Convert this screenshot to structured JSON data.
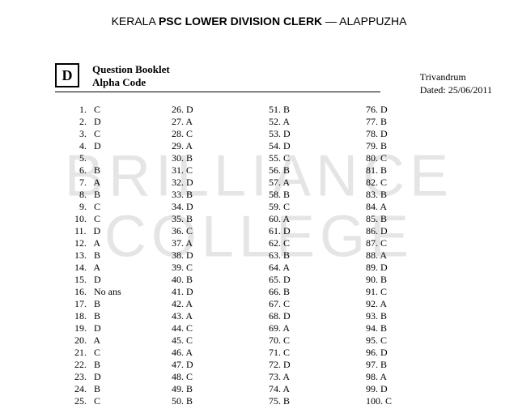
{
  "title_prefix": "KERALA ",
  "title_bold": "PSC LOWER DIVISION CLERK",
  "title_suffix": " — ALAPPUZHA",
  "code_letter": "D",
  "booklet_line1": "Question Booklet",
  "booklet_line2": "Alpha Code",
  "meta_place": "Trivandrum",
  "meta_date": "Dated: 25/06/2011",
  "watermark_line1": "BRILLIANCE",
  "watermark_line2": "COLLEGE",
  "columns": [
    [
      {
        "n": "1.",
        "a": "C"
      },
      {
        "n": "2.",
        "a": "D"
      },
      {
        "n": "3.",
        "a": "C"
      },
      {
        "n": "4.",
        "a": "D"
      },
      {
        "n": "5.",
        "a": ""
      },
      {
        "n": "6.",
        "a": "B"
      },
      {
        "n": "7.",
        "a": "A"
      },
      {
        "n": "8.",
        "a": "B"
      },
      {
        "n": "9.",
        "a": "C"
      },
      {
        "n": "10.",
        "a": "C"
      },
      {
        "n": "11.",
        "a": "D"
      },
      {
        "n": "12.",
        "a": "A"
      },
      {
        "n": "13.",
        "a": "B"
      },
      {
        "n": "14.",
        "a": "A"
      },
      {
        "n": "15.",
        "a": "D"
      },
      {
        "n": "16.",
        "a": "No ans"
      },
      {
        "n": "17.",
        "a": "B"
      },
      {
        "n": "18.",
        "a": "B"
      },
      {
        "n": "19.",
        "a": "D"
      },
      {
        "n": "20.",
        "a": "A"
      },
      {
        "n": "21.",
        "a": "C"
      },
      {
        "n": "22.",
        "a": "B"
      },
      {
        "n": "23.",
        "a": "D"
      },
      {
        "n": "24.",
        "a": "B"
      },
      {
        "n": "25.",
        "a": "C"
      }
    ],
    [
      {
        "n": "26.",
        "a": "D"
      },
      {
        "n": "27.",
        "a": "A"
      },
      {
        "n": "28.",
        "a": "C"
      },
      {
        "n": "29.",
        "a": "A"
      },
      {
        "n": "30.",
        "a": "B"
      },
      {
        "n": "31.",
        "a": "C"
      },
      {
        "n": "32.",
        "a": "D"
      },
      {
        "n": "33.",
        "a": "B"
      },
      {
        "n": "34.",
        "a": "D"
      },
      {
        "n": "35.",
        "a": "B"
      },
      {
        "n": "36.",
        "a": "C"
      },
      {
        "n": "37.",
        "a": "A"
      },
      {
        "n": "38.",
        "a": "D"
      },
      {
        "n": "39.",
        "a": "C"
      },
      {
        "n": "40.",
        "a": "B"
      },
      {
        "n": "41.",
        "a": "D"
      },
      {
        "n": "42.",
        "a": "A"
      },
      {
        "n": "43.",
        "a": "A"
      },
      {
        "n": "44.",
        "a": "C"
      },
      {
        "n": "45.",
        "a": "C"
      },
      {
        "n": "46.",
        "a": "A"
      },
      {
        "n": "47.",
        "a": "D"
      },
      {
        "n": "48.",
        "a": "C"
      },
      {
        "n": "49.",
        "a": "B"
      },
      {
        "n": "50.",
        "a": "B"
      }
    ],
    [
      {
        "n": "51.",
        "a": "B"
      },
      {
        "n": "52.",
        "a": "A"
      },
      {
        "n": "53.",
        "a": "D"
      },
      {
        "n": "54.",
        "a": "D"
      },
      {
        "n": "55.",
        "a": "C"
      },
      {
        "n": "56.",
        "a": "B"
      },
      {
        "n": "57.",
        "a": "A"
      },
      {
        "n": "58.",
        "a": "B"
      },
      {
        "n": "59.",
        "a": "C"
      },
      {
        "n": "60.",
        "a": "A"
      },
      {
        "n": "61.",
        "a": "D"
      },
      {
        "n": "62.",
        "a": "C"
      },
      {
        "n": "63.",
        "a": "B"
      },
      {
        "n": "64.",
        "a": "A"
      },
      {
        "n": "65.",
        "a": "D"
      },
      {
        "n": "66.",
        "a": "B"
      },
      {
        "n": "67.",
        "a": "C"
      },
      {
        "n": "68.",
        "a": "D"
      },
      {
        "n": "69.",
        "a": "A"
      },
      {
        "n": "70.",
        "a": "C"
      },
      {
        "n": "71.",
        "a": "C"
      },
      {
        "n": "72.",
        "a": "D"
      },
      {
        "n": "73.",
        "a": "A"
      },
      {
        "n": "74.",
        "a": "A"
      },
      {
        "n": "75.",
        "a": "B"
      }
    ],
    [
      {
        "n": "76.",
        "a": "D"
      },
      {
        "n": "77.",
        "a": "B"
      },
      {
        "n": "78.",
        "a": "D"
      },
      {
        "n": "79.",
        "a": "B"
      },
      {
        "n": "80.",
        "a": "C"
      },
      {
        "n": "81.",
        "a": "B"
      },
      {
        "n": "82.",
        "a": "C"
      },
      {
        "n": "83.",
        "a": "B"
      },
      {
        "n": "84.",
        "a": "A"
      },
      {
        "n": "85.",
        "a": "B"
      },
      {
        "n": "86.",
        "a": "D"
      },
      {
        "n": "87.",
        "a": "C"
      },
      {
        "n": "88.",
        "a": "A"
      },
      {
        "n": "89.",
        "a": "D"
      },
      {
        "n": "90.",
        "a": "B"
      },
      {
        "n": "91.",
        "a": "C"
      },
      {
        "n": "92.",
        "a": "A"
      },
      {
        "n": "93.",
        "a": "B"
      },
      {
        "n": "94.",
        "a": "B"
      },
      {
        "n": "95.",
        "a": "C"
      },
      {
        "n": "96.",
        "a": "D"
      },
      {
        "n": "97.",
        "a": "B"
      },
      {
        "n": "98.",
        "a": "A"
      },
      {
        "n": "99.",
        "a": "D"
      },
      {
        "n": "100.",
        "a": "C"
      }
    ]
  ]
}
